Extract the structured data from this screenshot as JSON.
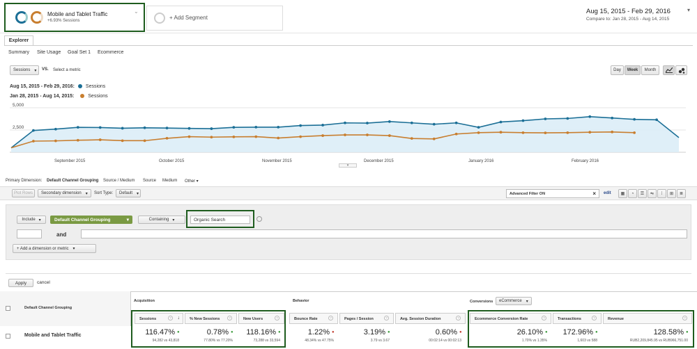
{
  "segments": {
    "active": {
      "name": "Mobile and Tablet Traffic",
      "sub": "+6.93% Sessions"
    },
    "add_label": "+ Add Segment"
  },
  "daterange": {
    "range": "Aug 15, 2015 - Feb 29, 2016",
    "compare": "Compare to: Jan 28, 2015 - Aug 14, 2015"
  },
  "tabs": {
    "explorer": "Explorer"
  },
  "subtabs": [
    "Summary",
    "Site Usage",
    "Goal Set 1",
    "Ecommerce"
  ],
  "metric": {
    "selected": "Sessions",
    "vs": "VS.",
    "select": "Select a metric"
  },
  "period_buttons": [
    "Day",
    "Week",
    "Month"
  ],
  "legend": [
    {
      "range": "Aug 15, 2015 - Feb 29, 2016:",
      "label": "Sessions",
      "color": "#1b6f96"
    },
    {
      "range": "Jan 28, 2015 - Aug 14, 2015:",
      "label": "Sessions",
      "color": "#c87e2f"
    }
  ],
  "chart_data": {
    "type": "line",
    "ylim": [
      0,
      5000
    ],
    "yticks": [
      "5,000",
      "2,500"
    ],
    "month_labels": [
      "September 2015",
      "October 2015",
      "November 2015",
      "December 2015",
      "January 2016",
      "February 2016"
    ],
    "series": [
      {
        "color": "#1b6f96",
        "values": [
          500,
          2450,
          2600,
          2800,
          2780,
          2700,
          2750,
          2720,
          2680,
          2650,
          2800,
          2820,
          2820,
          3000,
          3050,
          3300,
          3280,
          3450,
          3300,
          3150,
          3300,
          2800,
          3400,
          3550,
          3750,
          3800,
          4000,
          3850,
          3700,
          3650,
          1650
        ]
      },
      {
        "color": "#c87e2f",
        "values": [
          500,
          1250,
          1280,
          1350,
          1400,
          1300,
          1300,
          1570,
          1750,
          1700,
          1730,
          1750,
          1600,
          1750,
          1870,
          1950,
          1950,
          1870,
          1550,
          1500,
          2050,
          2200,
          2250,
          2200,
          2180,
          2200,
          2250,
          2280,
          2200
        ]
      }
    ]
  },
  "dimensions": {
    "label": "Primary Dimension:",
    "items": [
      "Default Channel Grouping",
      "Source / Medium",
      "Source",
      "Medium",
      "Other"
    ]
  },
  "toolbar": {
    "plot": "Plot Rows",
    "secondary": "Secondary dimension",
    "sort_label": "Sort Type:",
    "sort_value": "Default",
    "advanced": "Advanced Filter ON",
    "edit": "edit"
  },
  "filter": {
    "include": "Include",
    "dimension": "Default Channel Grouping",
    "match": "Containing",
    "value": "Organic Search",
    "and": "and",
    "add": "+ Add a dimension or metric",
    "apply": "Apply",
    "cancel": "cancel"
  },
  "table": {
    "dim_header": "Default Channel Grouping",
    "groups": {
      "acq": "Acquisition",
      "beh": "Behavior",
      "conv": "Conversions",
      "conv_select": "eCommerce"
    },
    "row_label": "Mobile and Tablet Traffic",
    "columns": [
      {
        "h": "Sessions",
        "v": "116.47%",
        "s": "94,282 vs 43,818",
        "mark": "up"
      },
      {
        "h": "% New Sessions",
        "v": "0.78%",
        "s": "77.80% vs 77.20%",
        "mark": "up"
      },
      {
        "h": "New Users",
        "v": "118.16%",
        "s": "73,288 vs 33,594",
        "mark": "up"
      },
      {
        "h": "Bounce Rate",
        "v": "1.22%",
        "s": "48.34% vs 47.75%",
        "mark": "down"
      },
      {
        "h": "Pages / Session",
        "v": "3.19%",
        "s": "3.79 vs 3.67",
        "mark": "up"
      },
      {
        "h": "Avg. Session Duration",
        "v": "0.60%",
        "s": "00:02:14 vs 00:02:13",
        "mark": "down"
      },
      {
        "h": "Ecommerce Conversion Rate",
        "v": "26.10%",
        "s": "1.70% vs 1.35%",
        "mark": "up"
      },
      {
        "h": "Transactions",
        "v": "172.96%",
        "s": "1,603 vs 588",
        "mark": "up"
      },
      {
        "h": "Revenue",
        "v": "128.58%",
        "s": "RUB2,209,845.95 vs RUB966,751.00",
        "mark": "up"
      }
    ]
  }
}
